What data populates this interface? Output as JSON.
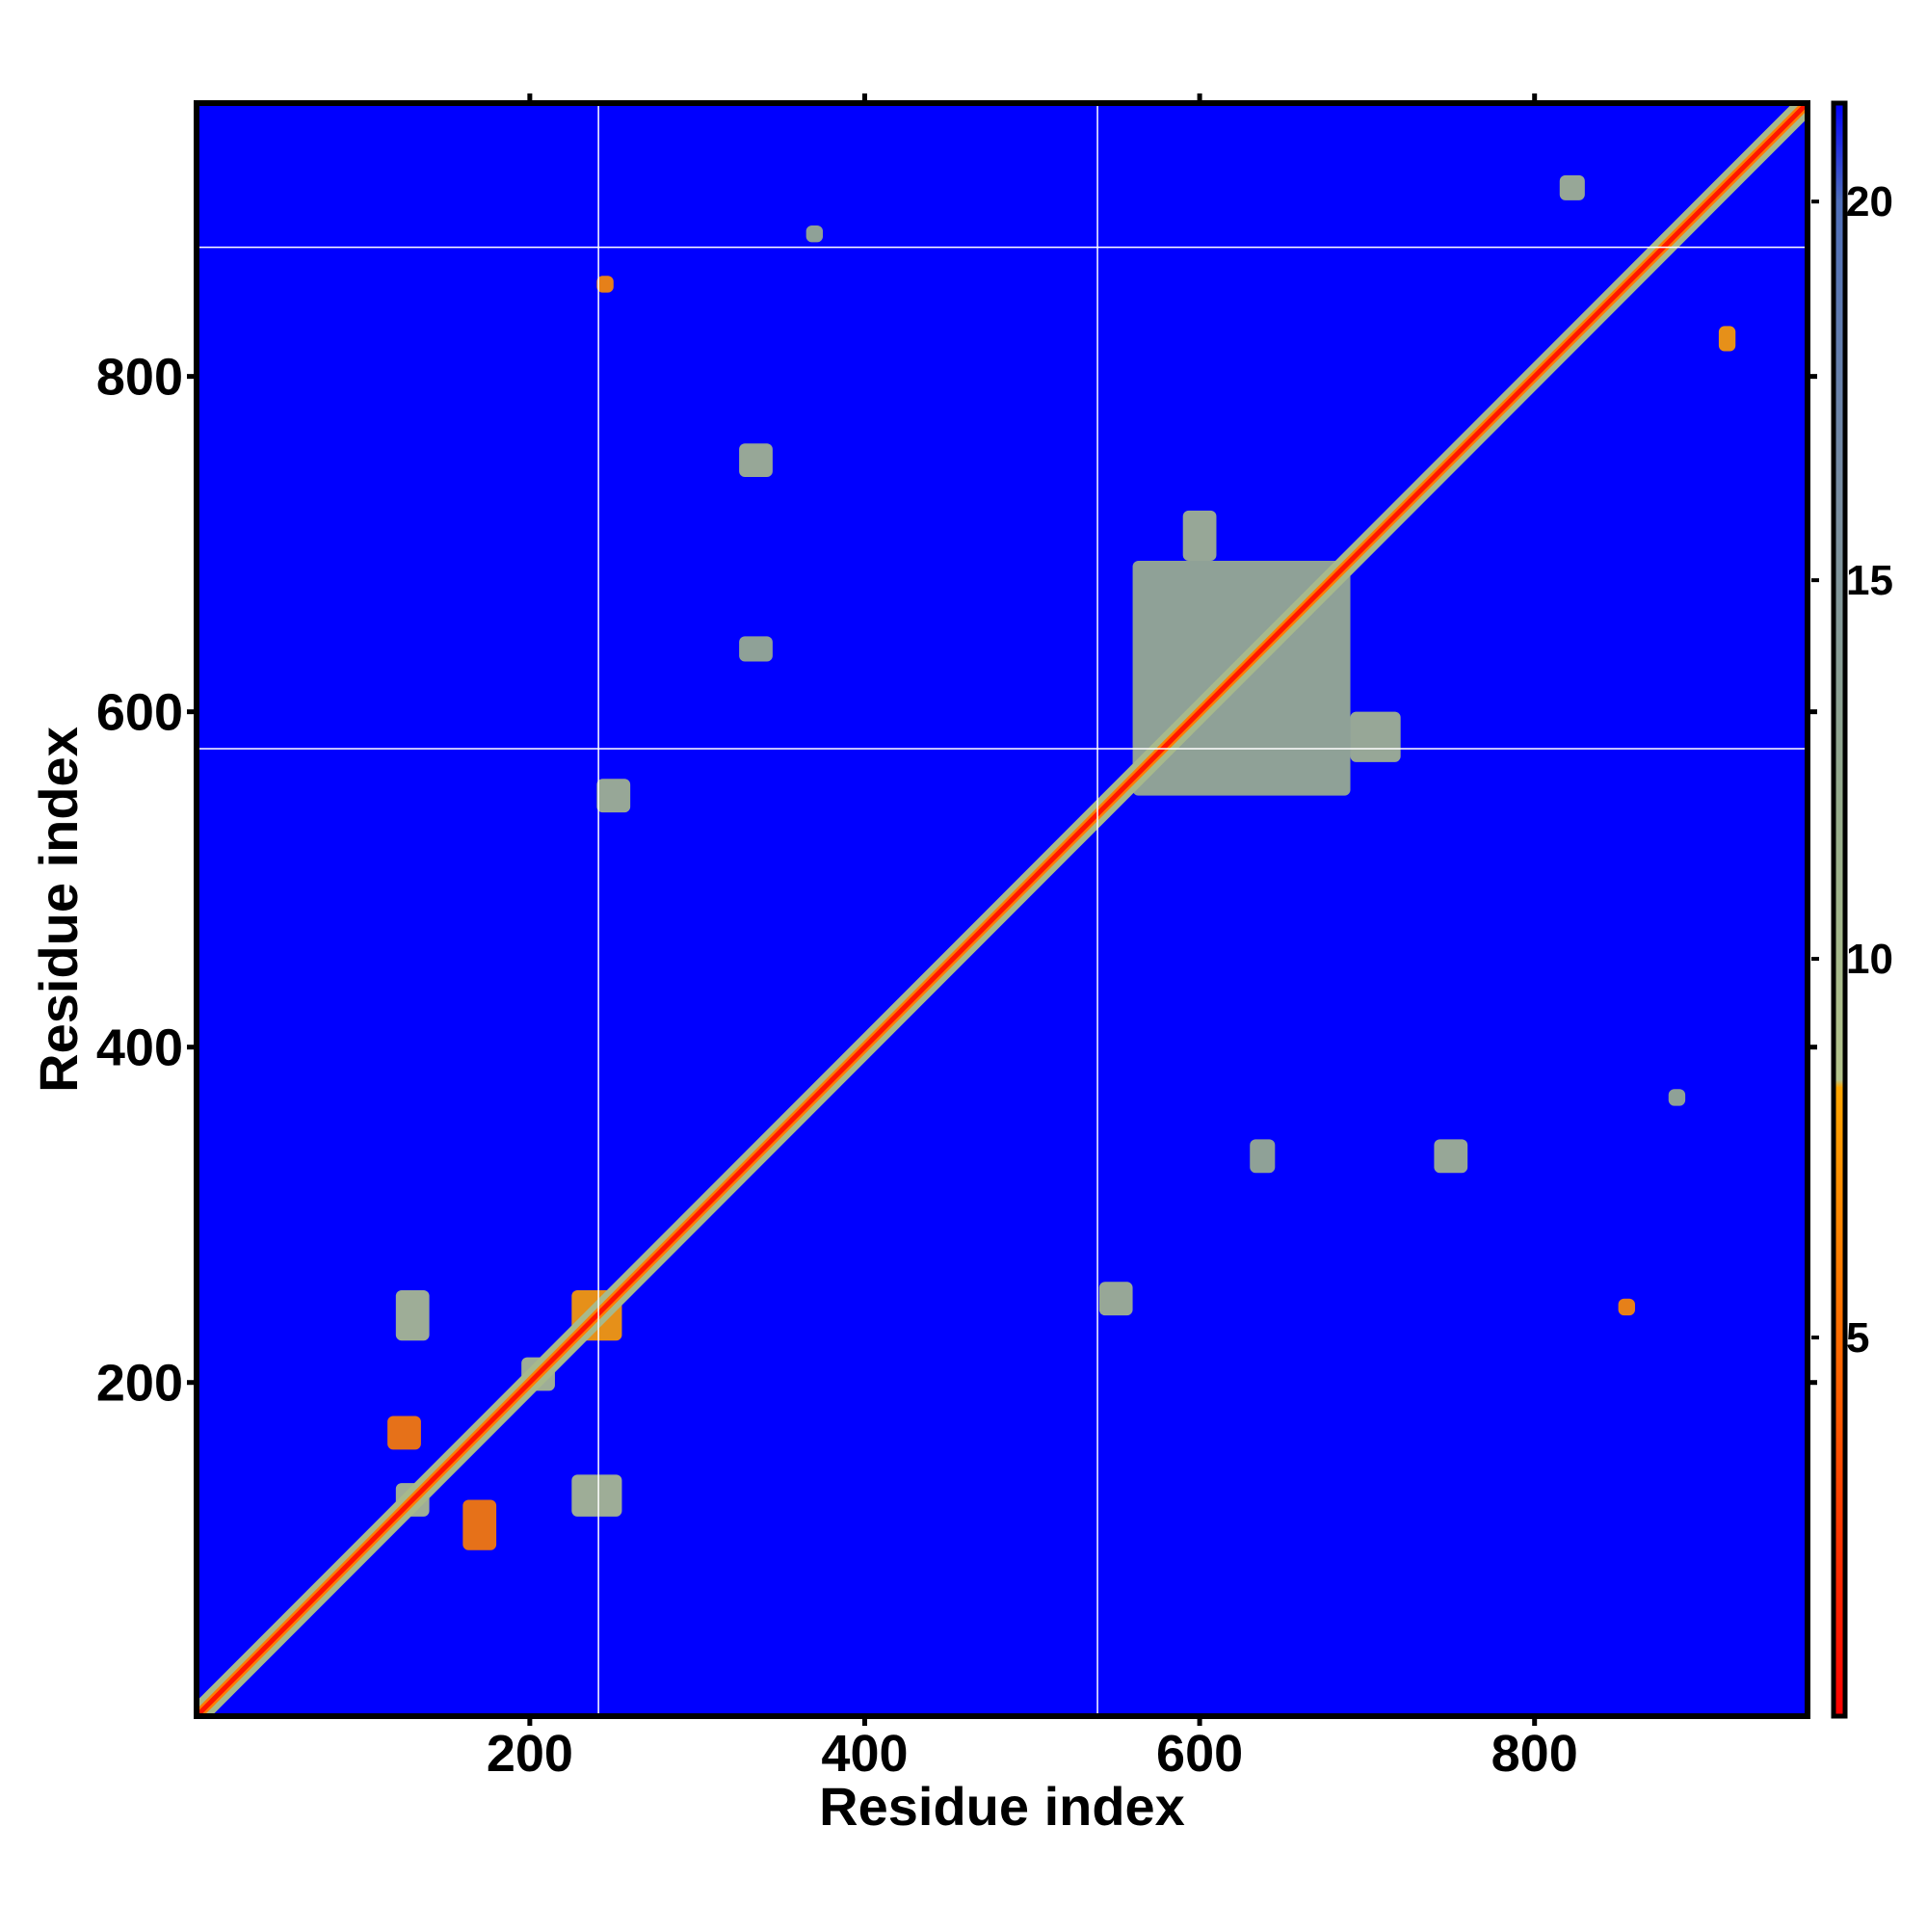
{
  "chart_data": {
    "type": "heatmap",
    "title": "",
    "xlabel": "Residue index",
    "ylabel": "Residue index",
    "xlim": [
      1,
      963
    ],
    "ylim": [
      1,
      963
    ],
    "x_ticks": [
      200,
      400,
      600,
      800
    ],
    "y_ticks": [
      200,
      400,
      600,
      800
    ],
    "colorbar": {
      "range": [
        0,
        21.3
      ],
      "ticks": [
        5,
        10,
        15,
        20
      ],
      "stops": [
        {
          "value": 0,
          "color": "#ff0000"
        },
        {
          "value": 4,
          "color": "#ff5a00"
        },
        {
          "value": 8.3,
          "color": "#ffa500"
        },
        {
          "value": 8.4,
          "color": "#b4c48c"
        },
        {
          "value": 12,
          "color": "#96ac8c"
        },
        {
          "value": 16,
          "color": "#7a8ea0"
        },
        {
          "value": 20,
          "color": "#4f6fba"
        },
        {
          "value": 21.3,
          "color": "#0000ff"
        }
      ]
    },
    "background_value": 21.3,
    "background_color": "#0000ff",
    "diagonal": {
      "from": 1,
      "to": 963,
      "value": 1
    },
    "reference_lines": {
      "x": [
        241,
        539
      ],
      "y": [
        578,
        877
      ],
      "color": "#ffffff"
    },
    "contact_regions": [
      {
        "x": [
          120,
          140
        ],
        "y": [
          120,
          140
        ],
        "value": 9
      },
      {
        "x": [
          160,
          180
        ],
        "y": [
          100,
          130
        ],
        "value": 6
      },
      {
        "x": [
          115,
          135
        ],
        "y": [
          160,
          180
        ],
        "value": 6
      },
      {
        "x": [
          195,
          215
        ],
        "y": [
          195,
          215
        ],
        "value": 9
      },
      {
        "x": [
          225,
          255
        ],
        "y": [
          225,
          255
        ],
        "value": 8
      },
      {
        "x": [
          225,
          255
        ],
        "y": [
          120,
          145
        ],
        "value": 9
      },
      {
        "x": [
          120,
          140
        ],
        "y": [
          225,
          255
        ],
        "value": 9
      },
      {
        "x": [
          325,
          345
        ],
        "y": [
          740,
          760
        ],
        "value": 10
      },
      {
        "x": [
          740,
          760
        ],
        "y": [
          325,
          345
        ],
        "value": 10
      },
      {
        "x": [
          560,
          690
        ],
        "y": [
          550,
          690
        ],
        "value": 11
      },
      {
        "x": [
          590,
          610
        ],
        "y": [
          690,
          720
        ],
        "value": 10
      },
      {
        "x": [
          690,
          720
        ],
        "y": [
          570,
          600
        ],
        "value": 10
      },
      {
        "x": [
          540,
          560
        ],
        "y": [
          240,
          260
        ],
        "value": 10
      },
      {
        "x": [
          240,
          260
        ],
        "y": [
          540,
          560
        ],
        "value": 10
      },
      {
        "x": [
          850,
          860
        ],
        "y": [
          240,
          250
        ],
        "value": 7
      },
      {
        "x": [
          240,
          250
        ],
        "y": [
          850,
          860
        ],
        "value": 7
      },
      {
        "x": [
          880,
          890
        ],
        "y": [
          365,
          375
        ],
        "value": 11
      },
      {
        "x": [
          365,
          375
        ],
        "y": [
          880,
          890
        ],
        "value": 11
      },
      {
        "x": [
          910,
          920
        ],
        "y": [
          815,
          830
        ],
        "value": 8
      },
      {
        "x": [
          815,
          830
        ],
        "y": [
          905,
          920
        ],
        "value": 10
      },
      {
        "x": [
          325,
          345
        ],
        "y": [
          630,
          645
        ],
        "value": 11
      },
      {
        "x": [
          630,
          645
        ],
        "y": [
          325,
          345
        ],
        "value": 11
      }
    ]
  }
}
